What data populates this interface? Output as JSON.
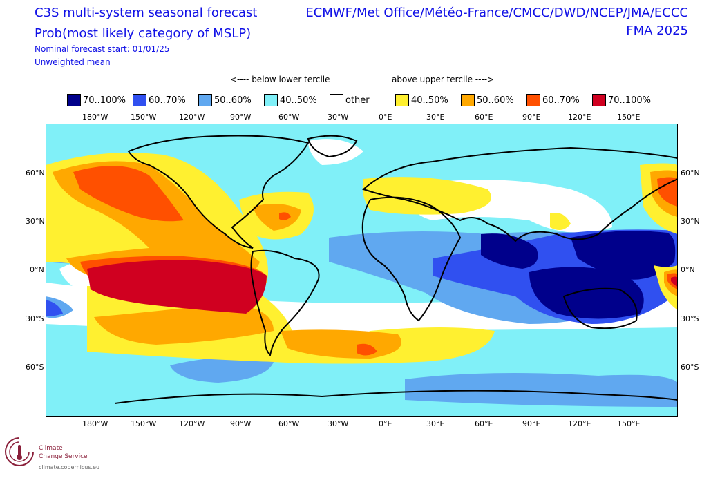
{
  "header": {
    "title_line1": "C3S multi-system seasonal forecast",
    "title_line2": "Prob(most likely category of MSLP)",
    "subtitle_line1": "Nominal forecast start: 01/01/25",
    "subtitle_line2": "Unweighted mean",
    "centres": "ECMWF/Met Office/Météo-France/CMCC/DWD/NCEP/JMA/ECCC",
    "season": "FMA 2025"
  },
  "legend": {
    "below_note": "<---- below lower tercile",
    "above_note": "above upper tercile ---->",
    "items": [
      {
        "label": "70..100%",
        "color": "#00008b"
      },
      {
        "label": "60..70%",
        "color": "#3050f0"
      },
      {
        "label": "50..60%",
        "color": "#60a8f0"
      },
      {
        "label": "40..50%",
        "color": "#80f0f8"
      },
      {
        "label": "other",
        "color": "#ffffff"
      },
      {
        "label": "40..50%",
        "color": "#fff030"
      },
      {
        "label": "50..60%",
        "color": "#ffa800"
      },
      {
        "label": "60..70%",
        "color": "#ff5000"
      },
      {
        "label": "70..100%",
        "color": "#d00020"
      }
    ]
  },
  "axes": {
    "lon_labels": [
      "180°W",
      "150°W",
      "120°W",
      "90°W",
      "60°W",
      "30°W",
      "0°E",
      "30°E",
      "60°E",
      "90°E",
      "120°E",
      "150°E"
    ],
    "lat_labels": [
      "60°N",
      "30°N",
      "0°N",
      "30°S",
      "60°S"
    ]
  },
  "logo": {
    "line1": "Climate",
    "line2": "Change Service",
    "url": "climate.copernicus.eu"
  }
}
